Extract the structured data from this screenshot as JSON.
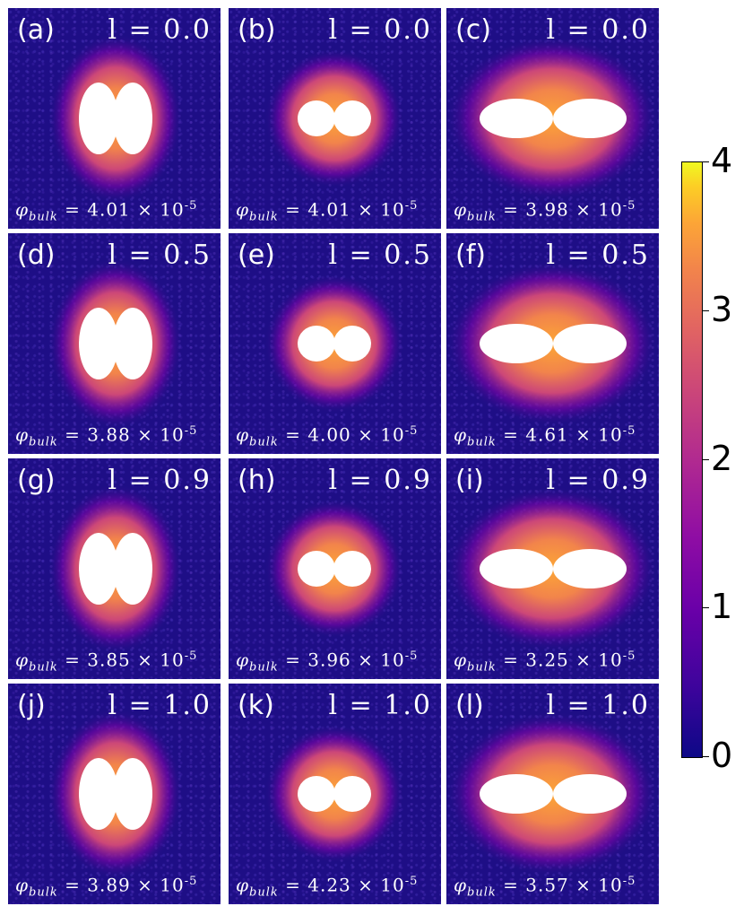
{
  "panels": [
    {
      "label": "(a)",
      "l": "l = 0.0",
      "phi": "4.01",
      "exp": "-5",
      "shape": "tall"
    },
    {
      "label": "(b)",
      "l": "l = 0.0",
      "phi": "4.01",
      "exp": "-5",
      "shape": "round"
    },
    {
      "label": "(c)",
      "l": "l = 0.0",
      "phi": "3.98",
      "exp": "-5",
      "shape": "wide"
    },
    {
      "label": "(d)",
      "l": "l = 0.5",
      "phi": "3.88",
      "exp": "-5",
      "shape": "tall"
    },
    {
      "label": "(e)",
      "l": "l = 0.5",
      "phi": "4.00",
      "exp": "-5",
      "shape": "round"
    },
    {
      "label": "(f)",
      "l": "l = 0.5",
      "phi": "4.61",
      "exp": "-5",
      "shape": "wide"
    },
    {
      "label": "(g)",
      "l": "l = 0.9",
      "phi": "3.85",
      "exp": "-5",
      "shape": "tall"
    },
    {
      "label": "(h)",
      "l": "l = 0.9",
      "phi": "3.96",
      "exp": "-5",
      "shape": "round"
    },
    {
      "label": "(i)",
      "l": "l = 0.9",
      "phi": "3.25",
      "exp": "-5",
      "shape": "wide"
    },
    {
      "label": "(j)",
      "l": "l = 1.0",
      "phi": "3.89",
      "exp": "-5",
      "shape": "tall"
    },
    {
      "label": "(k)",
      "l": "l = 1.0",
      "phi": "4.23",
      "exp": "-5",
      "shape": "round"
    },
    {
      "label": "(l)",
      "l": "l = 1.0",
      "phi": "3.57",
      "exp": "-5",
      "shape": "wide"
    }
  ],
  "phi_symbol": "φ",
  "phi_sub": "bulk",
  "times": "× 10",
  "colorbar": {
    "colormap": "plasma",
    "ticks": [
      "0",
      "1",
      "2",
      "3",
      "4"
    ],
    "range": [
      0,
      4
    ]
  }
}
